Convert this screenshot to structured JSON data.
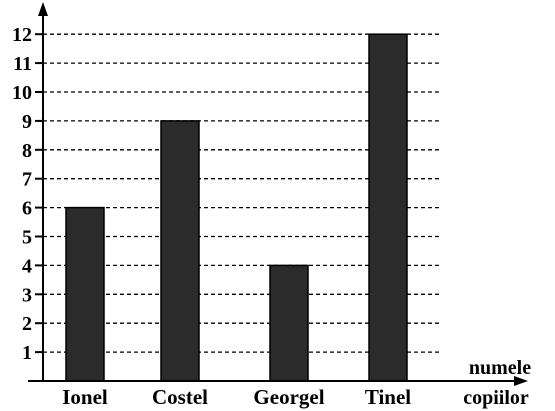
{
  "chart_data": {
    "type": "bar",
    "title": "",
    "xlabel": "numele copiilor",
    "xlabel_lines": [
      "numele",
      "copiilor"
    ],
    "ylabel": "",
    "categories": [
      "Ionel",
      "Costel",
      "Georgel",
      "Tinel"
    ],
    "values": [
      6,
      9,
      4,
      12
    ],
    "yticks": [
      "1",
      "2",
      "3",
      "4",
      "5",
      "6",
      "7",
      "8",
      "9",
      "10",
      "11",
      "12"
    ],
    "ylim": [
      0,
      12
    ],
    "grid": true,
    "colors": {
      "bar": "#2b2b2b",
      "axis": "#000000"
    }
  }
}
